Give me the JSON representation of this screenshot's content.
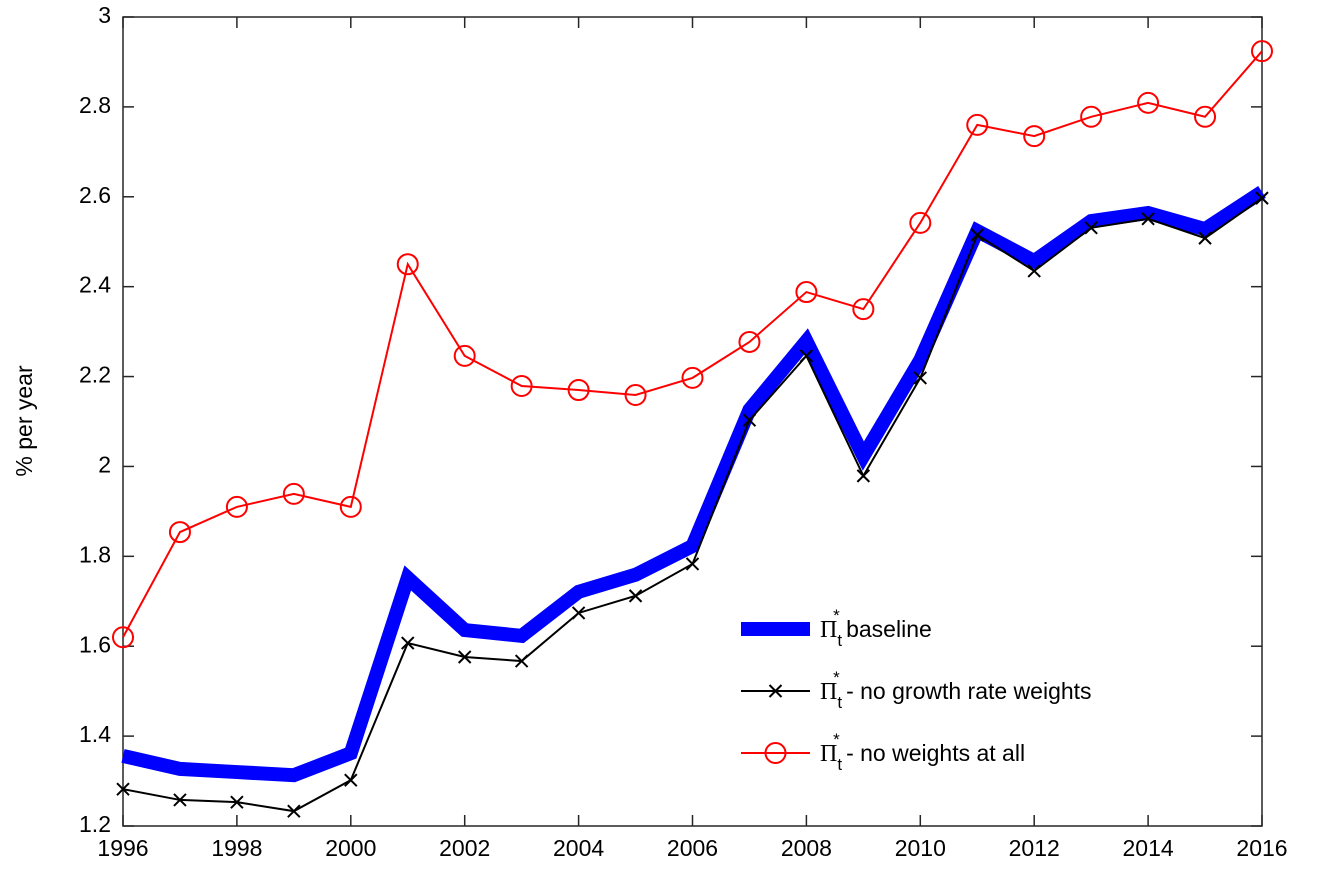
{
  "chart_data": {
    "type": "line",
    "y_label": "% per year",
    "x": [
      1996,
      1997,
      1998,
      1999,
      2000,
      2001,
      2002,
      2003,
      2004,
      2005,
      2006,
      2007,
      2008,
      2009,
      2010,
      2011,
      2012,
      2013,
      2014,
      2015,
      2016
    ],
    "series": [
      {
        "name": "Πt* baseline",
        "color": "#0000ff",
        "marker": "none",
        "width": 14,
        "values": [
          1.356,
          1.327,
          1.32,
          1.313,
          1.362,
          1.752,
          1.636,
          1.623,
          1.721,
          1.759,
          1.823,
          2.126,
          2.279,
          2.023,
          2.237,
          2.524,
          2.457,
          2.546,
          2.564,
          2.528,
          2.611
        ]
      },
      {
        "name": "Πt* - no growth rate weights",
        "color": "#000000",
        "marker": "x",
        "width": 2,
        "values": [
          1.282,
          1.258,
          1.253,
          1.233,
          1.302,
          1.607,
          1.576,
          1.567,
          1.674,
          1.712,
          1.783,
          2.103,
          2.246,
          1.979,
          2.197,
          2.515,
          2.435,
          2.531,
          2.551,
          2.508,
          2.597
        ]
      },
      {
        "name": "Πt* - no weights at all",
        "color": "#ff0000",
        "marker": "o",
        "width": 2,
        "values": [
          1.62,
          1.854,
          1.91,
          1.939,
          1.91,
          2.45,
          2.246,
          2.179,
          2.17,
          2.159,
          2.197,
          2.277,
          2.388,
          2.35,
          2.542,
          2.76,
          2.735,
          2.778,
          2.809,
          2.778,
          2.924
        ]
      }
    ],
    "xlim": [
      1996,
      2016
    ],
    "xticks": [
      1996,
      1998,
      2000,
      2002,
      2004,
      2006,
      2008,
      2010,
      2012,
      2014,
      2016
    ],
    "ylim": [
      1.2,
      3
    ],
    "yticks": [
      1.2,
      1.4,
      1.6,
      1.8,
      2,
      2.2,
      2.4,
      2.6,
      2.8,
      3
    ],
    "legend": "lower-right"
  }
}
